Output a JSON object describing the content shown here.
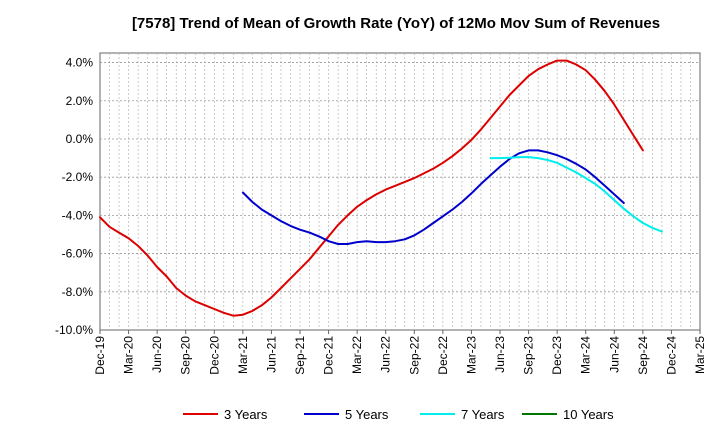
{
  "chart_data": {
    "type": "line",
    "title": "[7578]  Trend of Mean of Growth Rate (YoY) of 12Mo Mov Sum of Revenues",
    "xlabel": "",
    "ylabel": "",
    "ylim": [
      -10,
      4.5
    ],
    "y_ticks": [
      4,
      2,
      0,
      -2,
      -4,
      -6,
      -8,
      -10
    ],
    "y_tick_labels": [
      "4.0%",
      "2.0%",
      "0.0%",
      "-2.0%",
      "-4.0%",
      "-6.0%",
      "-8.0%",
      "-10.0%"
    ],
    "x_tick_labels": [
      "Dec-19",
      "Mar-20",
      "Jun-20",
      "Sep-20",
      "Dec-20",
      "Mar-21",
      "Jun-21",
      "Sep-21",
      "Dec-21",
      "Mar-22",
      "Jun-22",
      "Sep-22",
      "Dec-22",
      "Mar-23",
      "Jun-23",
      "Sep-23",
      "Dec-23",
      "Mar-24",
      "Jun-24",
      "Sep-24",
      "Dec-24",
      "Mar-25"
    ],
    "x_range_months": [
      0,
      63
    ],
    "grid": true,
    "legend_position": "bottom",
    "series": [
      {
        "name": "3 Years",
        "color": "#dd0000",
        "points": [
          [
            0,
            -4.1
          ],
          [
            1,
            -4.6
          ],
          [
            2,
            -4.9
          ],
          [
            3,
            -5.2
          ],
          [
            4,
            -5.6
          ],
          [
            5,
            -6.1
          ],
          [
            6,
            -6.7
          ],
          [
            7,
            -7.2
          ],
          [
            8,
            -7.8
          ],
          [
            9,
            -8.2
          ],
          [
            10,
            -8.5
          ],
          [
            11,
            -8.7
          ],
          [
            12,
            -8.9
          ],
          [
            13,
            -9.1
          ],
          [
            14,
            -9.25
          ],
          [
            15,
            -9.2
          ],
          [
            16,
            -9.0
          ],
          [
            17,
            -8.7
          ],
          [
            18,
            -8.3
          ],
          [
            19,
            -7.8
          ],
          [
            20,
            -7.3
          ],
          [
            21,
            -6.8
          ],
          [
            22,
            -6.3
          ],
          [
            23,
            -5.7
          ],
          [
            24,
            -5.1
          ],
          [
            25,
            -4.5
          ],
          [
            26,
            -4.0
          ],
          [
            27,
            -3.55
          ],
          [
            28,
            -3.2
          ],
          [
            29,
            -2.9
          ],
          [
            30,
            -2.65
          ],
          [
            31,
            -2.45
          ],
          [
            32,
            -2.25
          ],
          [
            33,
            -2.05
          ],
          [
            34,
            -1.8
          ],
          [
            35,
            -1.55
          ],
          [
            36,
            -1.25
          ],
          [
            37,
            -0.9
          ],
          [
            38,
            -0.5
          ],
          [
            39,
            -0.05
          ],
          [
            40,
            0.5
          ],
          [
            41,
            1.1
          ],
          [
            42,
            1.7
          ],
          [
            43,
            2.3
          ],
          [
            44,
            2.8
          ],
          [
            45,
            3.3
          ],
          [
            46,
            3.65
          ],
          [
            47,
            3.9
          ],
          [
            48,
            4.1
          ],
          [
            49,
            4.1
          ],
          [
            50,
            3.9
          ],
          [
            51,
            3.6
          ],
          [
            52,
            3.1
          ],
          [
            53,
            2.5
          ],
          [
            54,
            1.8
          ],
          [
            55,
            1.0
          ],
          [
            56,
            0.2
          ],
          [
            57,
            -0.6
          ]
        ]
      },
      {
        "name": "5 Years",
        "color": "#0000cc",
        "points": [
          [
            15,
            -2.8
          ],
          [
            16,
            -3.3
          ],
          [
            17,
            -3.7
          ],
          [
            18,
            -4.0
          ],
          [
            19,
            -4.3
          ],
          [
            20,
            -4.55
          ],
          [
            21,
            -4.75
          ],
          [
            22,
            -4.9
          ],
          [
            23,
            -5.1
          ],
          [
            24,
            -5.35
          ],
          [
            25,
            -5.5
          ],
          [
            26,
            -5.5
          ],
          [
            27,
            -5.4
          ],
          [
            28,
            -5.35
          ],
          [
            29,
            -5.4
          ],
          [
            30,
            -5.4
          ],
          [
            31,
            -5.35
          ],
          [
            32,
            -5.25
          ],
          [
            33,
            -5.05
          ],
          [
            34,
            -4.75
          ],
          [
            35,
            -4.4
          ],
          [
            36,
            -4.05
          ],
          [
            37,
            -3.7
          ],
          [
            38,
            -3.3
          ],
          [
            39,
            -2.85
          ],
          [
            40,
            -2.35
          ],
          [
            41,
            -1.9
          ],
          [
            42,
            -1.45
          ],
          [
            43,
            -1.05
          ],
          [
            44,
            -0.75
          ],
          [
            45,
            -0.6
          ],
          [
            46,
            -0.6
          ],
          [
            47,
            -0.7
          ],
          [
            48,
            -0.85
          ],
          [
            49,
            -1.05
          ],
          [
            50,
            -1.3
          ],
          [
            51,
            -1.6
          ],
          [
            52,
            -2.0
          ],
          [
            53,
            -2.45
          ],
          [
            54,
            -2.9
          ],
          [
            55,
            -3.35
          ]
        ]
      },
      {
        "name": "7 Years",
        "color": "#00eeee",
        "points": [
          [
            41,
            -1.0
          ],
          [
            42,
            -1.0
          ],
          [
            43,
            -0.98
          ],
          [
            44,
            -0.95
          ],
          [
            45,
            -0.95
          ],
          [
            46,
            -1.0
          ],
          [
            47,
            -1.1
          ],
          [
            48,
            -1.25
          ],
          [
            49,
            -1.5
          ],
          [
            50,
            -1.75
          ],
          [
            51,
            -2.05
          ],
          [
            52,
            -2.35
          ],
          [
            53,
            -2.75
          ],
          [
            54,
            -3.2
          ],
          [
            55,
            -3.65
          ],
          [
            56,
            -4.05
          ],
          [
            57,
            -4.4
          ],
          [
            58,
            -4.65
          ],
          [
            59,
            -4.85
          ]
        ]
      },
      {
        "name": "10 Years",
        "color": "#007700",
        "points": []
      }
    ]
  }
}
